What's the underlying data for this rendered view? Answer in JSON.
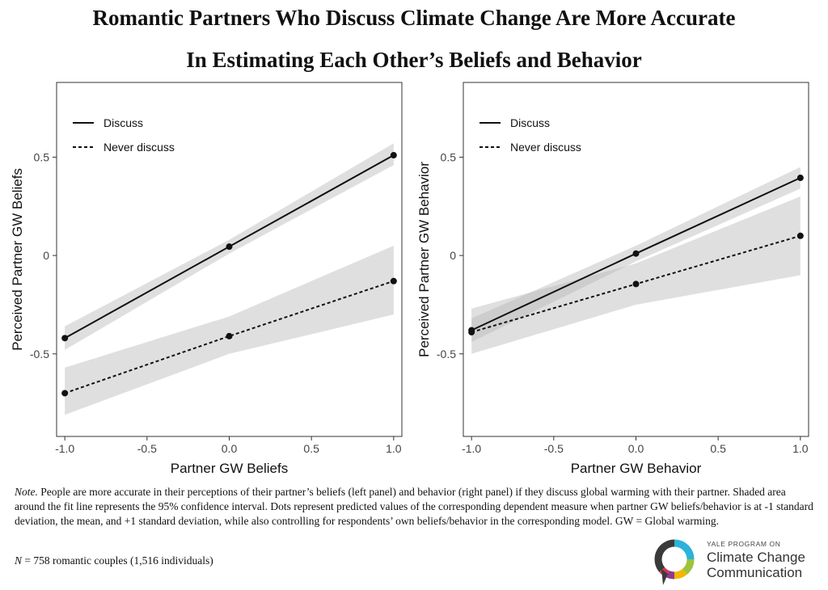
{
  "title_line1": "Romantic Partners Who Discuss Climate Change Are More Accurate",
  "title_line2": "In Estimating Each Other’s Beliefs and Behavior",
  "chart_data": [
    {
      "type": "line",
      "xlabel": "Partner GW Beliefs",
      "ylabel": "Perceived Partner GW Beliefs",
      "xlim": [
        -1.05,
        1.05
      ],
      "ylim": [
        -0.92,
        0.88
      ],
      "xticks": [
        -1.0,
        -0.5,
        0.0,
        0.5,
        1.0
      ],
      "xtick_labels": [
        "-1.0",
        "-0.5",
        "0.0",
        "0.5",
        "1.0"
      ],
      "yticks": [
        -0.5,
        0,
        0.5
      ],
      "ytick_labels": [
        "-0.5",
        "0",
        "0.5"
      ],
      "legend_position": "top-left",
      "grid": false,
      "series": [
        {
          "name": "Discuss",
          "style": "solid",
          "x": [
            -1,
            0,
            1
          ],
          "y": [
            -0.42,
            0.045,
            0.51
          ],
          "ci_low": [
            -0.48,
            0.01,
            0.46
          ],
          "ci_high": [
            -0.36,
            0.08,
            0.57
          ]
        },
        {
          "name": "Never discuss",
          "style": "dashed",
          "x": [
            -1,
            0,
            1
          ],
          "y": [
            -0.7,
            -0.41,
            -0.13
          ],
          "ci_low": [
            -0.81,
            -0.5,
            -0.3
          ],
          "ci_high": [
            -0.57,
            -0.31,
            0.05
          ]
        }
      ]
    },
    {
      "type": "line",
      "xlabel": "Partner GW Behavior",
      "ylabel": "Perceived Partner GW Behavior",
      "xlim": [
        -1.05,
        1.05
      ],
      "ylim": [
        -0.92,
        0.88
      ],
      "xticks": [
        -1.0,
        -0.5,
        0.0,
        0.5,
        1.0
      ],
      "xtick_labels": [
        "-1.0",
        "-0.5",
        "0.0",
        "0.5",
        "1.0"
      ],
      "yticks": [
        -0.5,
        0,
        0.5
      ],
      "ytick_labels": [
        "-0.5",
        "0",
        "0.5"
      ],
      "legend_position": "top-left",
      "grid": false,
      "series": [
        {
          "name": "Discuss",
          "style": "solid",
          "x": [
            -1,
            0,
            1
          ],
          "y": [
            -0.38,
            0.01,
            0.395
          ],
          "ci_low": [
            -0.44,
            -0.03,
            0.34
          ],
          "ci_high": [
            -0.32,
            0.05,
            0.45
          ]
        },
        {
          "name": "Never discuss",
          "style": "dashed",
          "x": [
            -1,
            0,
            1
          ],
          "y": [
            -0.39,
            -0.145,
            0.1
          ],
          "ci_low": [
            -0.5,
            -0.25,
            -0.1
          ],
          "ci_high": [
            -0.27,
            -0.04,
            0.3
          ]
        }
      ]
    }
  ],
  "note": {
    "label": "Note.",
    "text": " People are more accurate in their perceptions of their partner’s beliefs (left panel) and behavior (right panel) if they discuss global warming with their partner. Shaded area around the fit line represents the 95% confidence interval. Dots represent predicted values of the corresponding dependent measure when partner GW beliefs/behavior is at -1 standard deviation, the mean, and +1 standard deviation, while also controlling for respondents’ own beliefs/behavior in the corresponding model. GW = Global warming."
  },
  "sample": {
    "label": "N",
    "text": " = 758 romantic couples (1,516 individuals)"
  },
  "logo": {
    "org": "YALE PROGRAM ON",
    "line1": "Climate Change",
    "line2": "Communication",
    "colors": [
      "#2bb3d9",
      "#9bc53d",
      "#f2b705",
      "#8e3a8b",
      "#d6344e"
    ]
  }
}
